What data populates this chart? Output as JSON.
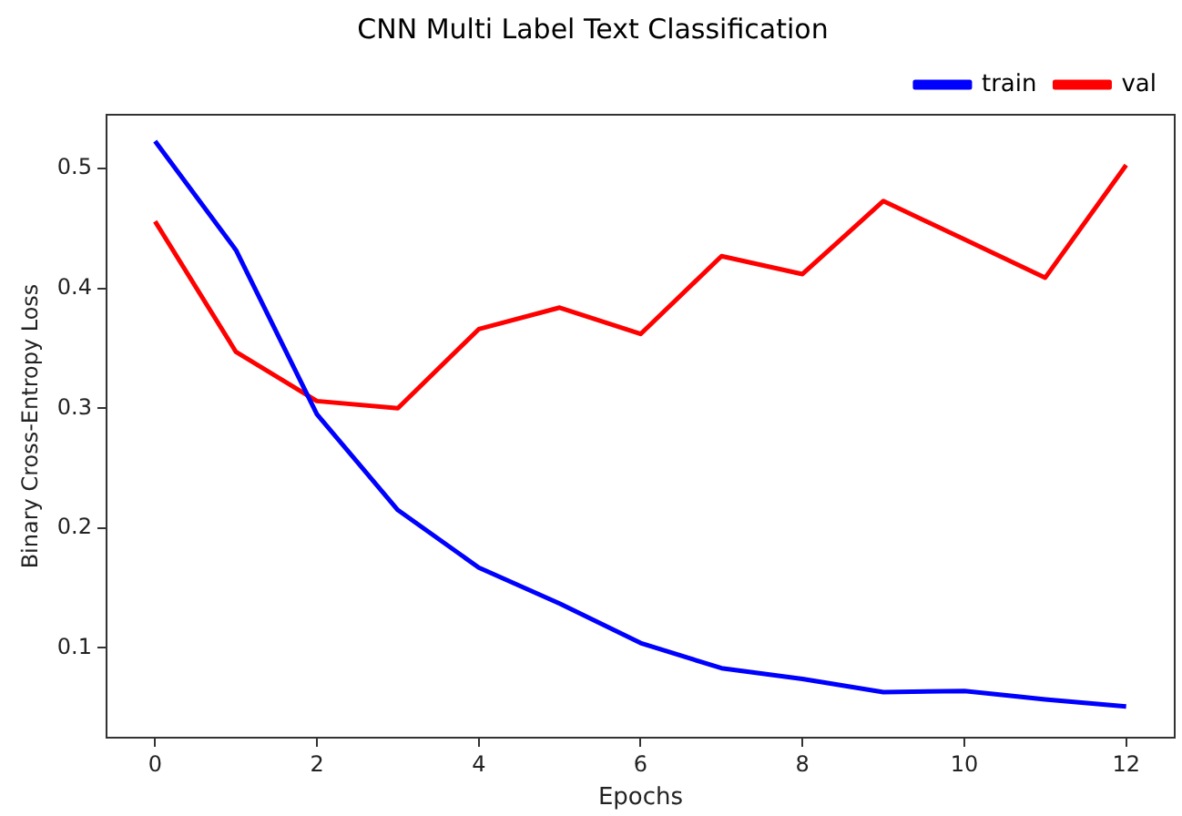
{
  "chart_data": {
    "type": "line",
    "title": "CNN Multi Label Text Classification",
    "xlabel": "Epochs",
    "ylabel": "Binary Cross-Entropy Loss",
    "x": [
      0,
      1,
      2,
      3,
      4,
      5,
      6,
      7,
      8,
      9,
      10,
      11,
      12
    ],
    "series": [
      {
        "name": "train",
        "color": "#0000ff",
        "values": [
          0.523,
          0.432,
          0.295,
          0.215,
          0.167,
          0.137,
          0.104,
          0.083,
          0.074,
          0.063,
          0.064,
          0.057,
          0.051
        ]
      },
      {
        "name": "val",
        "color": "#ff0000",
        "values": [
          0.456,
          0.347,
          0.306,
          0.3,
          0.366,
          0.384,
          0.362,
          0.427,
          0.412,
          0.473,
          0.441,
          0.409,
          0.503
        ]
      }
    ],
    "xlim": [
      -0.6,
      12.6
    ],
    "xticks": [
      0,
      2,
      4,
      6,
      8,
      10,
      12
    ],
    "ylim": [
      0.025,
      0.545
    ],
    "yticks": [
      0.1,
      0.2,
      0.3,
      0.4,
      0.5
    ],
    "grid": false,
    "legend": "top right",
    "marker": "none",
    "line_style": "solid"
  }
}
